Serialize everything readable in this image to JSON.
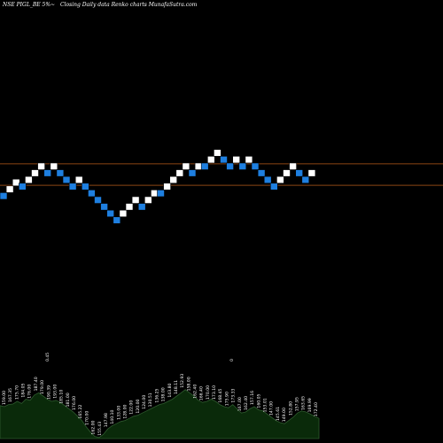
{
  "header": {
    "symbol_text": "NSE PIGL_BE 5%~",
    "description_text": "Closing Daily data  Renko  charts MunafaSutra.com"
  },
  "chart_data": {
    "type": "renko",
    "brick_size_percent": 5,
    "colors": {
      "up": "#ffffff",
      "down": "#1e7fe0",
      "reference_line": "#8b4513",
      "volume_fill": "#0a2a0a",
      "volume_outline": "#2e5a2e"
    },
    "reference_lines": [
      1,
      -1
    ],
    "bricks": [
      {
        "dir": "down",
        "level": -2
      },
      {
        "dir": "up",
        "level": -1
      },
      {
        "dir": "up",
        "level": 0
      },
      {
        "dir": "down",
        "level": -0.6
      },
      {
        "dir": "up",
        "level": 0.4
      },
      {
        "dir": "up",
        "level": 1.4
      },
      {
        "dir": "up",
        "level": 2.4
      },
      {
        "dir": "down",
        "level": 1.4
      },
      {
        "dir": "up",
        "level": 2.4
      },
      {
        "dir": "down",
        "level": 1.4
      },
      {
        "dir": "down",
        "level": 0.4
      },
      {
        "dir": "down",
        "level": -0.6
      },
      {
        "dir": "up",
        "level": 0.4
      },
      {
        "dir": "down",
        "level": -0.6
      },
      {
        "dir": "down",
        "level": -1.6
      },
      {
        "dir": "down",
        "level": -2.6
      },
      {
        "dir": "down",
        "level": -3.6
      },
      {
        "dir": "down",
        "level": -4.6
      },
      {
        "dir": "down",
        "level": -5.6
      },
      {
        "dir": "up",
        "level": -4.6
      },
      {
        "dir": "up",
        "level": -3.6
      },
      {
        "dir": "up",
        "level": -2.6
      },
      {
        "dir": "down",
        "level": -3.6
      },
      {
        "dir": "up",
        "level": -2.6
      },
      {
        "dir": "up",
        "level": -1.6
      },
      {
        "dir": "down",
        "level": -1.6
      },
      {
        "dir": "up",
        "level": -0.6
      },
      {
        "dir": "up",
        "level": 0.4
      },
      {
        "dir": "up",
        "level": 1.4
      },
      {
        "dir": "up",
        "level": 2.4
      },
      {
        "dir": "down",
        "level": 1.4
      },
      {
        "dir": "up",
        "level": 2.4
      },
      {
        "dir": "down",
        "level": 2.4
      },
      {
        "dir": "up",
        "level": 3.4
      },
      {
        "dir": "up",
        "level": 4.4
      },
      {
        "dir": "down",
        "level": 3.4
      },
      {
        "dir": "down",
        "level": 2.4
      },
      {
        "dir": "up",
        "level": 3.4
      },
      {
        "dir": "down",
        "level": 2.4
      },
      {
        "dir": "up",
        "level": 3.4
      },
      {
        "dir": "down",
        "level": 2.4
      },
      {
        "dir": "down",
        "level": 1.4
      },
      {
        "dir": "down",
        "level": 0.4
      },
      {
        "dir": "down",
        "level": -0.6
      },
      {
        "dir": "up",
        "level": 0.4
      },
      {
        "dir": "up",
        "level": 1.4
      },
      {
        "dir": "up",
        "level": 2.4
      },
      {
        "dir": "down",
        "level": 1.4
      },
      {
        "dir": "down",
        "level": 0.4
      },
      {
        "dir": "up",
        "level": 1.4
      }
    ],
    "volume_values": [
      62,
      60,
      64,
      65,
      70,
      66,
      74,
      72,
      82,
      86,
      80,
      74,
      70,
      72,
      68,
      62,
      56,
      50,
      42,
      34,
      22,
      12,
      4,
      2,
      8,
      18,
      24,
      28,
      32,
      34,
      38,
      42,
      44,
      48,
      52,
      56,
      60,
      64,
      66,
      70,
      74,
      80,
      86,
      92,
      86,
      80,
      72,
      68,
      70,
      74,
      70,
      64,
      60,
      58,
      64,
      56,
      48,
      50,
      56,
      60,
      54,
      52,
      46,
      40,
      34,
      30,
      28,
      34,
      40,
      48,
      52,
      50,
      46,
      42,
      38
    ],
    "volume_labels": [
      "159.00",
      "167.35",
      "175.70",
      "184.05",
      "176.00",
      "187.40",
      "179.00",
      "190.39",
      "193.00",
      "185.10",
      "181.00",
      "176.00",
      "165.22",
      "170.00",
      "162.00",
      "155.43",
      "147.98",
      "140.10",
      "133.00",
      "128.00",
      "122.00",
      "120.00",
      "124.00",
      "130.51",
      "136.25",
      "138.00",
      "143.80",
      "148.11",
      "152.93",
      "158.00",
      "162.40",
      "166.40",
      "170.00",
      "173.10",
      "168.45",
      "175.90",
      "173.33",
      "167.00",
      "162.40",
      "157.16",
      "160.05",
      "153.01",
      "147.00",
      "145.61",
      "149.00",
      "152.80",
      "157.95",
      "163.65",
      "169.99",
      "172.40"
    ],
    "volume_marks": [
      "0.45",
      "0"
    ]
  }
}
